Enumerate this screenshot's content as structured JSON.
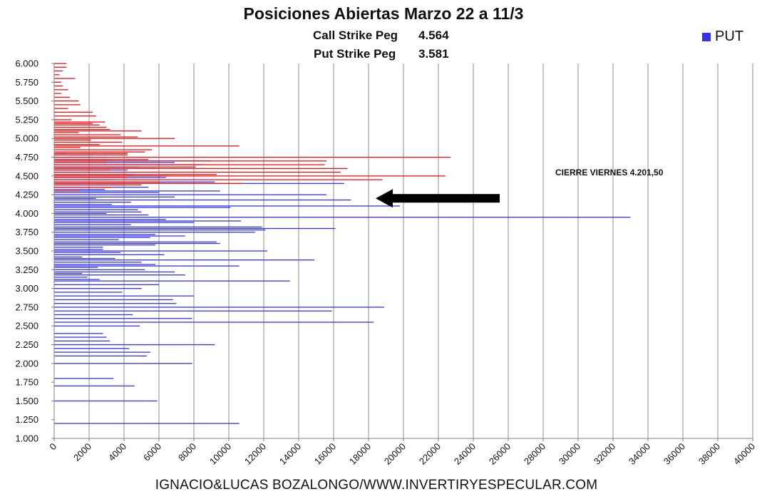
{
  "chart_data": {
    "type": "bar",
    "orientation": "horizontal",
    "title": "Posiciones Abiertas Marzo 22 a 11/3",
    "subtitle_lines": [
      {
        "label": "Call Strike Peg",
        "value": "4.564"
      },
      {
        "label": "Put Strike Peg",
        "value": "3.581"
      }
    ],
    "legend": {
      "entries": [
        "PUT"
      ],
      "placement": "top-right"
    },
    "annotation": "CIERRE VIERNES 4.201,50",
    "arrow_at": 4201.5,
    "xlim": [
      0,
      40000
    ],
    "x_ticks": [
      0,
      2000,
      4000,
      6000,
      8000,
      10000,
      12000,
      14000,
      16000,
      18000,
      20000,
      22000,
      24000,
      26000,
      28000,
      30000,
      32000,
      34000,
      36000,
      38000,
      40000
    ],
    "x_tick_labels": [
      "0",
      "2000",
      "4000",
      "6000",
      "8000",
      "10000",
      "12000",
      "14000",
      "16000",
      "18000",
      "20000",
      "22000",
      "24000",
      "26000",
      "28000",
      "30000",
      "32000",
      "34000",
      "36000",
      "38000",
      "40000"
    ],
    "ylim": [
      1000,
      6000
    ],
    "y_tick_labels": [
      "1.000",
      "1.250",
      "1.500",
      "1.750",
      "2.000",
      "2.250",
      "2.500",
      "2.750",
      "3.000",
      "3.250",
      "3.500",
      "3.750",
      "4.000",
      "4.250",
      "4.500",
      "4.750",
      "5.000",
      "5.250",
      "5.500",
      "5.750",
      "6.000"
    ],
    "grid": "vertical",
    "series": [
      {
        "name": "PUT",
        "color": "#3333ee",
        "strikes": [
          1200,
          1500,
          1700,
          1800,
          2000,
          2100,
          2150,
          2200,
          2250,
          2300,
          2350,
          2400,
          2500,
          2550,
          2600,
          2650,
          2700,
          2750,
          2800,
          2850,
          2900,
          2950,
          3000,
          3050,
          3100,
          3120,
          3150,
          3180,
          3200,
          3220,
          3250,
          3280,
          3300,
          3320,
          3350,
          3380,
          3400,
          3420,
          3450,
          3480,
          3500,
          3520,
          3550,
          3580,
          3600,
          3620,
          3650,
          3680,
          3700,
          3720,
          3750,
          3780,
          3800,
          3820,
          3850,
          3880,
          3900,
          3920,
          3950,
          3980,
          4000,
          4020,
          4050,
          4080,
          4100,
          4120,
          4150,
          4180,
          4200,
          4220,
          4250,
          4280,
          4300,
          4320,
          4350,
          4380,
          4400,
          4420,
          4450,
          4480,
          4500,
          4520,
          4550,
          4580,
          4600,
          4620,
          4650,
          4680,
          4700,
          4720,
          4750,
          4780,
          4800
        ],
        "values": [
          10600,
          5900,
          4600,
          3400,
          7900,
          5300,
          5500,
          4300,
          9200,
          3200,
          3000,
          2800,
          4900,
          18300,
          7900,
          4500,
          15900,
          18900,
          7000,
          6800,
          8000,
          3900,
          5000,
          6000,
          13500,
          2600,
          1900,
          7500,
          1600,
          6900,
          5200,
          2500,
          10600,
          5800,
          5000,
          14900,
          3500,
          1600,
          6300,
          3800,
          12200,
          2800,
          2800,
          5800,
          9500,
          9300,
          3700,
          5500,
          7500,
          5800,
          11500,
          12100,
          16100,
          11900,
          4400,
          8000,
          10700,
          6400,
          33000,
          5400,
          3000,
          5000,
          4800,
          10100,
          19800,
          3300,
          4400,
          17000,
          2400,
          6900,
          15600,
          6000,
          9500,
          2900,
          5400,
          4000,
          16600,
          9200,
          3400,
          6400,
          6600,
          4500,
          4200,
          4200,
          5800,
          4800,
          8500,
          6900,
          9000,
          3300,
          3000,
          2200,
          700
        ]
      },
      {
        "name": "CALL",
        "color": "#ee1111",
        "strikes": [
          4300,
          4350,
          4380,
          4400,
          4420,
          4450,
          4480,
          4500,
          4520,
          4550,
          4580,
          4600,
          4620,
          4650,
          4680,
          4700,
          4720,
          4750,
          4780,
          4800,
          4820,
          4850,
          4880,
          4900,
          4920,
          4950,
          4980,
          5000,
          5020,
          5050,
          5080,
          5100,
          5120,
          5150,
          5180,
          5200,
          5220,
          5250,
          5300,
          5350,
          5400,
          5450,
          5500,
          5550,
          5600,
          5650,
          5700,
          5750,
          5800,
          5850,
          5900,
          5950,
          6000
        ],
        "values": [
          1500,
          3300,
          5000,
          10800,
          6000,
          18800,
          4200,
          22400,
          9300,
          16400,
          3200,
          16800,
          8100,
          15500,
          3000,
          15600,
          5400,
          22700,
          4200,
          4200,
          5200,
          5600,
          1500,
          10600,
          2600,
          3900,
          2100,
          6900,
          4800,
          3800,
          1400,
          5000,
          3200,
          3000,
          2600,
          2200,
          2900,
          1000,
          2400,
          2200,
          800,
          1500,
          1400,
          900,
          400,
          800,
          500,
          400,
          1200,
          300,
          500,
          700,
          700
        ]
      }
    ]
  },
  "footer": "IGNACIO&LUCAS BOZALONGO/WWW.INVERTIRYESPECULAR.COM"
}
